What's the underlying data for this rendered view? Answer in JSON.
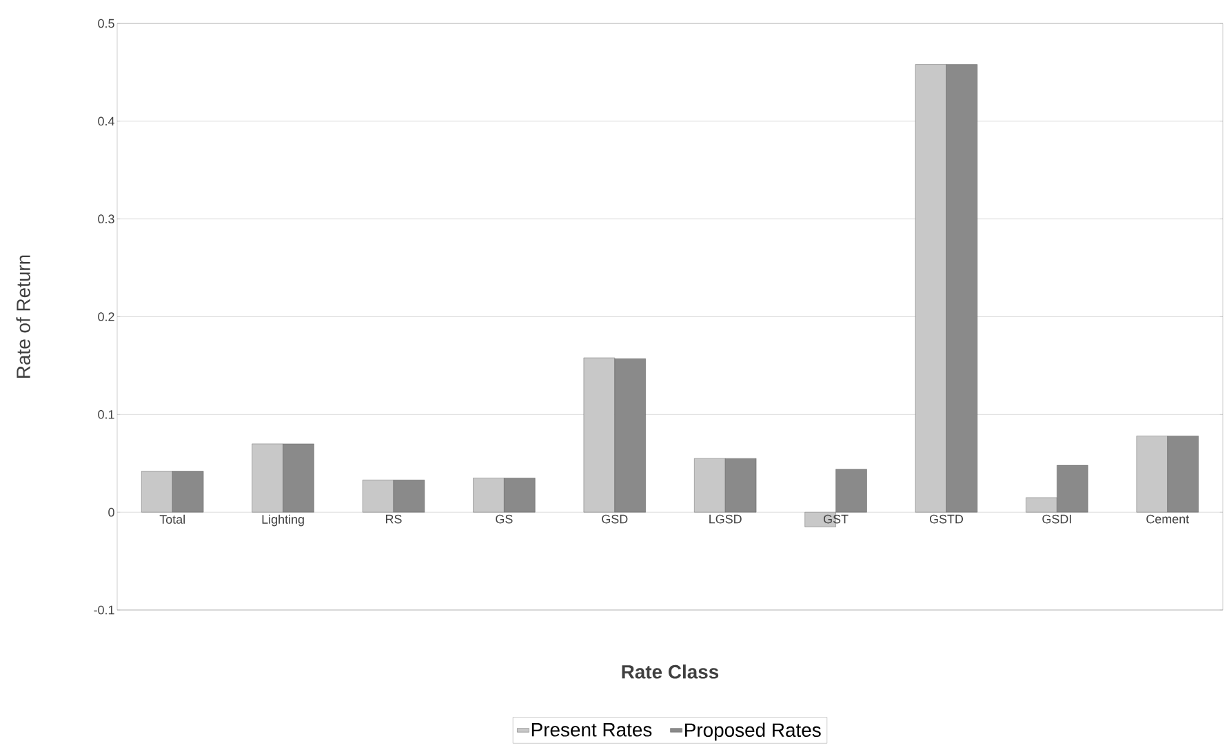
{
  "chart_data": {
    "type": "bar",
    "xlabel": "Rate Class",
    "ylabel": "Rate of Return",
    "categories": [
      "Total",
      "Lighting",
      "RS",
      "GS",
      "GSD",
      "LGSD",
      "GST",
      "GSTD",
      "GSDI",
      "Cement"
    ],
    "series": [
      {
        "name": "Present Rates",
        "color": "#c8c8c8",
        "values": [
          0.042,
          0.07,
          0.033,
          0.035,
          0.158,
          0.055,
          -0.015,
          0.458,
          0.015,
          0.078
        ]
      },
      {
        "name": "Proposed Rates",
        "color": "#8a8a8a",
        "values": [
          0.042,
          0.07,
          0.033,
          0.035,
          0.157,
          0.055,
          0.044,
          0.458,
          0.048,
          0.078
        ]
      }
    ],
    "ylim": [
      -0.1,
      0.5
    ],
    "yticks": [
      -0.1,
      0,
      0.1,
      0.2,
      0.3,
      0.4,
      0.5
    ],
    "grid": "y",
    "legend": "bottom"
  }
}
